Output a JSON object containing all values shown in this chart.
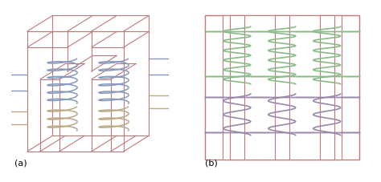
{
  "background": "#ffffff",
  "core_color": "#c07878",
  "coil_blue": "#8899bb",
  "coil_green": "#88bb88",
  "coil_tan": "#bbaa88",
  "coil_purple": "#9988aa",
  "label_a": "(a)",
  "label_b": "(b)",
  "label_fontsize": 8
}
